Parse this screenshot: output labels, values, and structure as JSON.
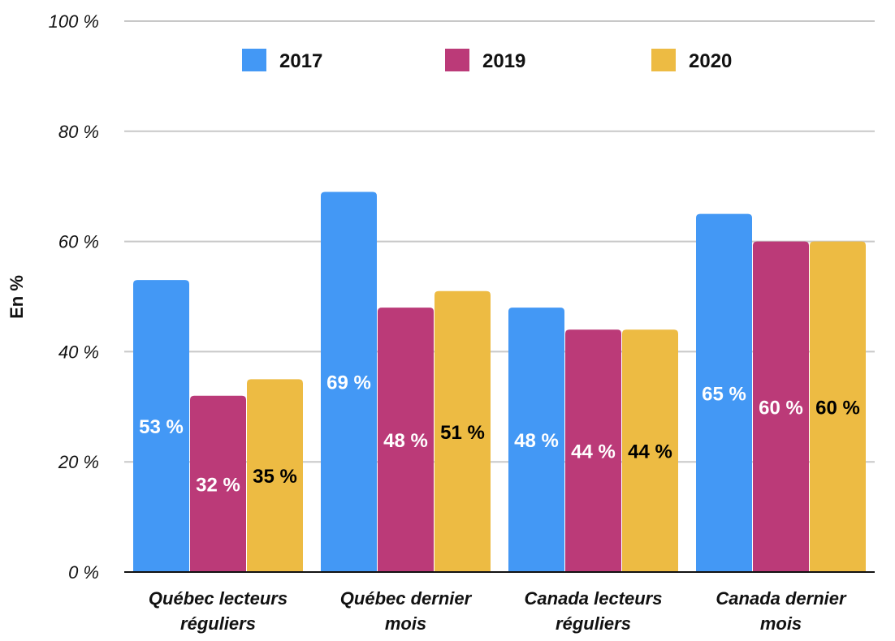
{
  "chart_data": {
    "type": "bar",
    "title": "",
    "xlabel": "",
    "ylabel": "En %",
    "ylim": [
      0,
      100
    ],
    "yticks": [
      0,
      20,
      40,
      60,
      80,
      100
    ],
    "ytick_labels": [
      "0 %",
      "20 %",
      "40 %",
      "60 %",
      "80 %",
      "100 %"
    ],
    "grid": true,
    "legend_position": "top",
    "categories": [
      [
        "Québec lecteurs",
        "réguliers"
      ],
      [
        "Québec dernier",
        "mois"
      ],
      [
        "Canada lecteurs",
        "réguliers"
      ],
      [
        "Canada dernier",
        "mois"
      ]
    ],
    "series": [
      {
        "name": "2017",
        "color": "#4398F5",
        "label_color": "#ffffff",
        "values": [
          53,
          69,
          48,
          65
        ],
        "labels": [
          "53 %",
          "69 %",
          "48 %",
          "65 %"
        ]
      },
      {
        "name": "2019",
        "color": "#BB3A78",
        "label_color": "#ffffff",
        "values": [
          32,
          48,
          44,
          60
        ],
        "labels": [
          "32 %",
          "48 %",
          "44 %",
          "60 %"
        ]
      },
      {
        "name": "2020",
        "color": "#EDBB43",
        "label_color": "#000000",
        "values": [
          35,
          51,
          44,
          60
        ],
        "labels": [
          "35 %",
          "51 %",
          "44 %",
          "60 %"
        ]
      }
    ]
  }
}
